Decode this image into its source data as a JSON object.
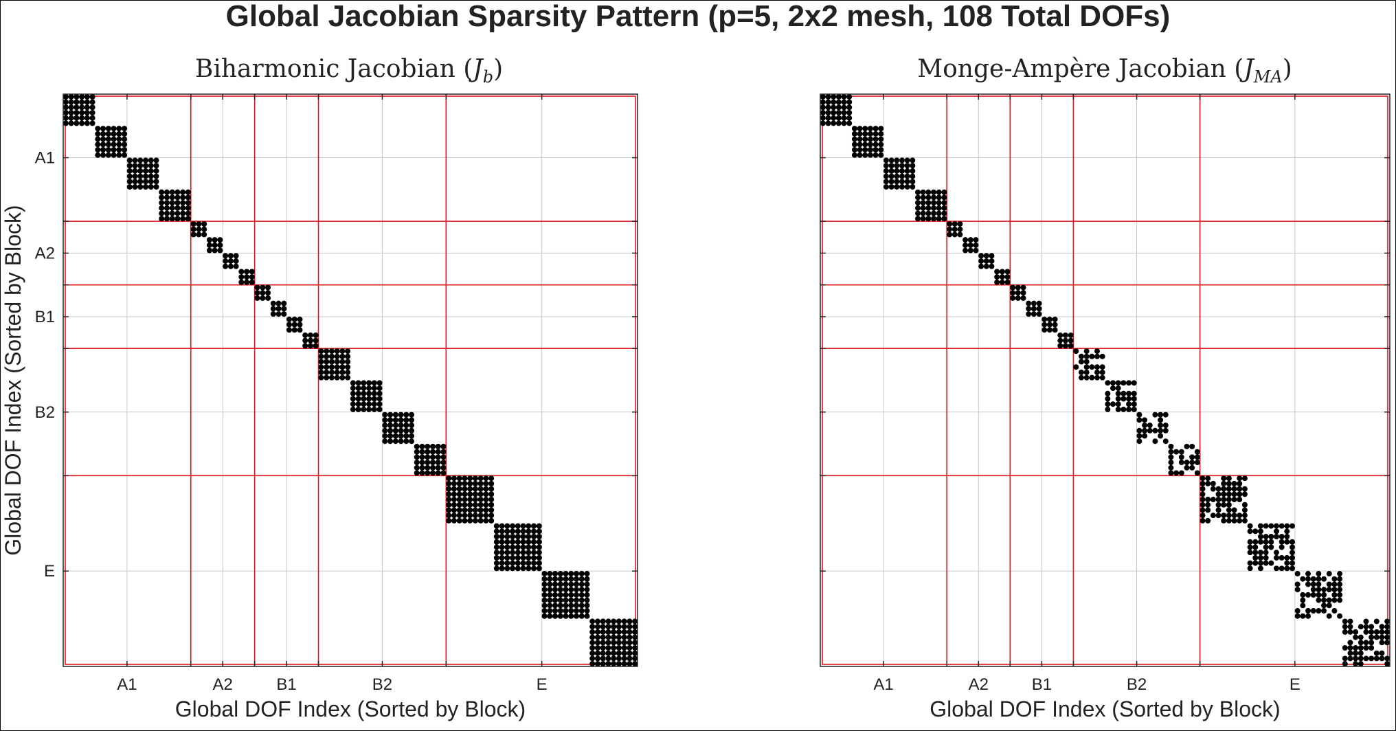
{
  "figure": {
    "title": "Global Jacobian Sparsity Pattern (p=5, 2x2 mesh, 108 Total DOFs)"
  },
  "colors": {
    "block_divider": "#e0141e",
    "grid": "#c8c8c8",
    "marker": "#000000",
    "axes": "#222222"
  },
  "chart_data": [
    {
      "type": "scatter",
      "subtitle": "spy plot",
      "title_text": "Biharmonic Jacobian (",
      "title_math": "J",
      "title_sub": "b",
      "title_close": ")",
      "xlabel": "Global DOF Index (Sorted by Block)",
      "ylabel": "Global DOF Index (Sorted by Block)",
      "n_dofs": 108,
      "xlim": [
        0.5,
        108.5
      ],
      "ylim": [
        0.5,
        108.5
      ],
      "y_reversed": true,
      "grid": true,
      "block_boundaries": [
        24.5,
        36.5,
        48.5,
        72.5
      ],
      "tick_positions": [
        12.5,
        30.5,
        42.5,
        60.5,
        90.5
      ],
      "tick_labels": [
        "A1",
        "A2",
        "B1",
        "B2",
        "E"
      ],
      "y_tick_labels_visible": true,
      "diagonal_blocks": [
        {
          "start": 1,
          "size": 6,
          "pattern": "dense"
        },
        {
          "start": 7,
          "size": 6,
          "pattern": "dense"
        },
        {
          "start": 13,
          "size": 6,
          "pattern": "dense"
        },
        {
          "start": 19,
          "size": 6,
          "pattern": "dense"
        },
        {
          "start": 25,
          "size": 3,
          "pattern": "dense"
        },
        {
          "start": 28,
          "size": 3,
          "pattern": "dense"
        },
        {
          "start": 31,
          "size": 3,
          "pattern": "dense"
        },
        {
          "start": 34,
          "size": 3,
          "pattern": "dense"
        },
        {
          "start": 37,
          "size": 3,
          "pattern": "dense"
        },
        {
          "start": 40,
          "size": 3,
          "pattern": "dense"
        },
        {
          "start": 43,
          "size": 3,
          "pattern": "dense"
        },
        {
          "start": 46,
          "size": 3,
          "pattern": "dense"
        },
        {
          "start": 49,
          "size": 6,
          "pattern": "dense"
        },
        {
          "start": 55,
          "size": 6,
          "pattern": "dense"
        },
        {
          "start": 61,
          "size": 6,
          "pattern": "dense"
        },
        {
          "start": 67,
          "size": 6,
          "pattern": "dense"
        },
        {
          "start": 73,
          "size": 9,
          "pattern": "dense"
        },
        {
          "start": 82,
          "size": 9,
          "pattern": "dense"
        },
        {
          "start": 91,
          "size": 9,
          "pattern": "dense"
        },
        {
          "start": 100,
          "size": 9,
          "pattern": "dense"
        }
      ]
    },
    {
      "type": "scatter",
      "subtitle": "spy plot",
      "title_text": "Monge-Ampère Jacobian (",
      "title_math": "J",
      "title_sub": "MA",
      "title_close": ")",
      "xlabel": "Global DOF Index (Sorted by Block)",
      "ylabel": "",
      "n_dofs": 108,
      "xlim": [
        0.5,
        108.5
      ],
      "ylim": [
        0.5,
        108.5
      ],
      "y_reversed": true,
      "grid": true,
      "block_boundaries": [
        24.5,
        36.5,
        48.5,
        72.5
      ],
      "tick_positions": [
        12.5,
        30.5,
        42.5,
        60.5,
        90.5
      ],
      "tick_labels": [
        "A1",
        "A2",
        "B1",
        "B2",
        "E"
      ],
      "y_tick_labels_visible": false,
      "diagonal_blocks": [
        {
          "start": 1,
          "size": 6,
          "pattern": "dense"
        },
        {
          "start": 7,
          "size": 6,
          "pattern": "dense"
        },
        {
          "start": 13,
          "size": 6,
          "pattern": "dense"
        },
        {
          "start": 19,
          "size": 6,
          "pattern": "dense"
        },
        {
          "start": 25,
          "size": 3,
          "pattern": "dense"
        },
        {
          "start": 28,
          "size": 3,
          "pattern": "dense"
        },
        {
          "start": 31,
          "size": 3,
          "pattern": "dense"
        },
        {
          "start": 34,
          "size": 3,
          "pattern": "dense"
        },
        {
          "start": 37,
          "size": 3,
          "pattern": "dense"
        },
        {
          "start": 40,
          "size": 3,
          "pattern": "dense"
        },
        {
          "start": 43,
          "size": 3,
          "pattern": "dense"
        },
        {
          "start": 46,
          "size": 3,
          "pattern": "dense"
        },
        {
          "start": 49,
          "size": 6,
          "pattern": "sparse"
        },
        {
          "start": 55,
          "size": 6,
          "pattern": "sparse"
        },
        {
          "start": 61,
          "size": 6,
          "pattern": "sparse"
        },
        {
          "start": 67,
          "size": 6,
          "pattern": "sparse"
        },
        {
          "start": 73,
          "size": 9,
          "pattern": "sparse"
        },
        {
          "start": 82,
          "size": 9,
          "pattern": "sparse"
        },
        {
          "start": 91,
          "size": 9,
          "pattern": "sparse"
        },
        {
          "start": 100,
          "size": 9,
          "pattern": "sparse"
        }
      ]
    }
  ]
}
